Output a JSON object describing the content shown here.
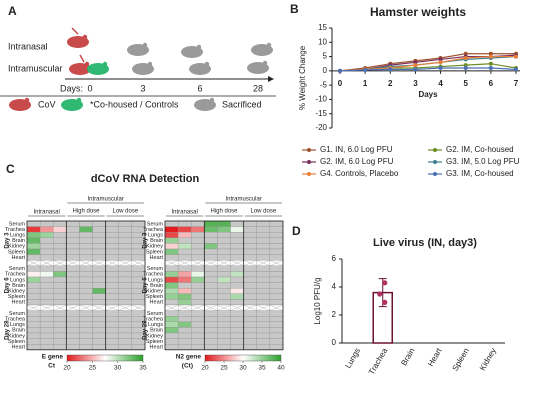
{
  "panel_labels": [
    "A",
    "B",
    "C",
    "D"
  ],
  "diagram": {
    "routes": [
      "Intranasal",
      "Intramuscular"
    ],
    "days_label": "Days:",
    "days": [
      0,
      3,
      6,
      28
    ],
    "legend": [
      "CoV",
      "*Co-housed / Controls",
      "Sacrificed"
    ]
  },
  "chart_data": [
    {
      "type": "line",
      "title": "Hamster weights",
      "x_label": "Days",
      "y_label": "% Weight Change",
      "x": [
        0,
        1,
        2,
        3,
        4,
        5,
        6,
        7
      ],
      "xlim": [
        0,
        7
      ],
      "xticks": [
        0,
        1,
        2,
        3,
        4,
        5,
        6,
        7
      ],
      "ylim": [
        -20,
        15
      ],
      "yticks": [
        -20,
        -15,
        -10,
        -5,
        0,
        5,
        10,
        15
      ],
      "series": [
        {
          "name": "G1. IN, 6.0 Log PFU",
          "color": "#a0522d",
          "values": [
            0,
            1,
            2.5,
            3.5,
            4.5,
            6,
            6,
            6
          ]
        },
        {
          "name": "G2. IM, Co-housed",
          "color": "#6b8e23",
          "values": [
            0,
            0.5,
            1,
            1,
            1.5,
            2,
            2.5,
            1
          ]
        },
        {
          "name": "G2. IM, 6.0 Log PFU",
          "color": "#7b2d5b",
          "values": [
            0,
            0.5,
            2,
            3,
            4,
            5,
            5,
            5.5
          ]
        },
        {
          "name": "G3. IM, 5.0 Log PFU",
          "color": "#3f7f8f",
          "values": [
            0,
            0.5,
            1.5,
            2,
            3,
            4,
            4.5,
            5
          ]
        },
        {
          "name": "G4. Controls, Placebo",
          "color": "#e8803a",
          "values": [
            0,
            0.5,
            1,
            2,
            3,
            4.5,
            5,
            5
          ]
        },
        {
          "name": "G3. IM, Co-housed",
          "color": "#4a6fb5",
          "values": [
            0,
            0.3,
            0.5,
            0.5,
            1,
            1,
            1,
            0.5
          ]
        }
      ]
    },
    {
      "type": "heatmap",
      "title": "dCoV RNA Detection",
      "row_groups": [
        "Day 3",
        "Day 6",
        "Day 28"
      ],
      "rows": [
        "Serum",
        "Trachea",
        "Lungs",
        "Brain",
        "Kidney",
        "Spleen",
        "Heart"
      ],
      "column_headers": {
        "intranasal": "Intranasal",
        "intramuscular": "Intramuscular",
        "high": "High dose",
        "low": "Low dose"
      },
      "colors": [
        "#e31a1c",
        "#ffffff",
        "#2ca02c"
      ],
      "missing_color": "#c8c8c8",
      "panels": [
        {
          "colorbar_label": [
            "E gene",
            "Ct"
          ],
          "clim": [
            20,
            35
          ],
          "cticks": [
            20,
            25,
            30,
            35
          ],
          "values": [
            [
              null,
              null,
              null,
              null,
              null,
              null,
              null,
              null,
              null
            ],
            [
              21,
              24,
              26,
              null,
              33,
              null,
              null,
              null,
              null
            ],
            [
              32,
              31,
              null,
              null,
              null,
              null,
              null,
              null,
              null
            ],
            [
              33,
              null,
              null,
              null,
              null,
              null,
              null,
              null,
              null
            ],
            [
              31,
              null,
              null,
              null,
              null,
              null,
              null,
              null,
              null
            ],
            [
              33,
              null,
              null,
              null,
              null,
              null,
              null,
              null,
              null
            ],
            [
              null,
              null,
              null,
              null,
              null,
              null,
              null,
              null,
              null
            ],
            [
              null,
              null,
              null,
              null,
              null,
              null,
              null,
              null,
              null
            ],
            [
              27,
              28,
              32,
              null,
              null,
              null,
              null,
              null,
              null
            ],
            [
              31,
              null,
              null,
              null,
              null,
              null,
              null,
              null,
              null
            ],
            [
              null,
              null,
              null,
              null,
              null,
              null,
              null,
              null,
              null
            ],
            [
              null,
              null,
              null,
              null,
              null,
              33,
              null,
              null,
              null
            ],
            [
              null,
              null,
              null,
              null,
              null,
              null,
              null,
              null,
              null
            ],
            [
              null,
              null,
              null,
              null,
              null,
              null,
              null,
              null,
              null
            ],
            [
              null,
              null,
              null,
              null,
              null,
              null,
              null,
              null,
              null
            ],
            [
              null,
              null,
              null,
              null,
              null,
              null,
              null,
              null,
              null
            ],
            [
              null,
              null,
              null,
              null,
              null,
              null,
              null,
              null,
              null
            ],
            [
              null,
              null,
              null,
              null,
              null,
              null,
              null,
              null,
              null
            ],
            [
              null,
              null,
              null,
              null,
              null,
              null,
              null,
              null,
              null
            ],
            [
              null,
              null,
              null,
              null,
              null,
              null,
              null,
              null,
              null
            ],
            [
              null,
              null,
              null,
              null,
              null,
              null,
              null,
              null,
              null
            ]
          ]
        },
        {
          "colorbar_label": [
            "N2 gene",
            "(Ct)"
          ],
          "clim": [
            20,
            40
          ],
          "cticks": [
            20,
            25,
            30,
            35,
            40
          ],
          "values": [
            [
              null,
              null,
              null,
              38,
              38,
              null,
              null,
              null,
              null
            ],
            [
              20,
              22,
              24,
              37,
              36,
              31,
              null,
              null,
              null
            ],
            [
              22,
              27,
              null,
              null,
              null,
              null,
              null,
              null,
              null
            ],
            [
              35,
              null,
              null,
              null,
              null,
              null,
              null,
              null,
              null
            ],
            [
              28,
              33,
              null,
              36,
              null,
              null,
              null,
              null,
              null
            ],
            [
              36,
              null,
              null,
              null,
              null,
              null,
              null,
              null,
              null
            ],
            [
              null,
              null,
              null,
              null,
              null,
              null,
              null,
              null,
              null
            ],
            [
              null,
              null,
              null,
              null,
              null,
              null,
              null,
              null,
              null
            ],
            [
              35,
              26,
              31,
              null,
              null,
              33,
              null,
              null,
              null
            ],
            [
              22,
              24,
              35,
              null,
              33,
              null,
              null,
              null,
              null
            ],
            [
              36,
              null,
              null,
              null,
              null,
              null,
              null,
              null,
              null
            ],
            [
              34,
              27,
              null,
              null,
              null,
              29,
              null,
              null,
              null
            ],
            [
              35,
              36,
              null,
              null,
              null,
              34,
              null,
              null,
              null
            ],
            [
              null,
              35,
              null,
              null,
              null,
              null,
              null,
              null,
              null
            ],
            [
              null,
              null,
              null,
              null,
              null,
              null,
              null,
              null,
              null
            ],
            [
              35,
              null,
              null,
              null,
              null,
              null,
              null,
              null,
              null
            ],
            [
              34,
              36,
              null,
              null,
              null,
              null,
              null,
              null,
              null
            ],
            [
              36,
              null,
              null,
              null,
              null,
              null,
              null,
              null,
              null
            ],
            [
              null,
              null,
              null,
              null,
              null,
              null,
              null,
              null,
              null
            ],
            [
              null,
              null,
              null,
              null,
              null,
              null,
              null,
              null,
              null
            ],
            [
              null,
              null,
              null,
              null,
              null,
              null,
              null,
              null,
              null
            ]
          ]
        }
      ]
    },
    {
      "type": "bar",
      "title": "Live virus (IN, day3)",
      "y_label": "Log10 PFU/g",
      "categories": [
        "Lungs",
        "Trachea",
        "Brain",
        "Heart",
        "Spleen",
        "Kidney"
      ],
      "values": [
        null,
        3.6,
        null,
        null,
        null,
        null
      ],
      "errors": [
        null,
        1.0,
        null,
        null,
        null,
        null
      ],
      "points": [
        [],
        [
          4.3,
          3.5,
          2.9
        ],
        [],
        [],
        [],
        []
      ],
      "color": "#6b1030",
      "point_color": "#b03060",
      "ylim": [
        0,
        6
      ],
      "yticks": [
        0,
        2,
        4,
        6
      ]
    }
  ]
}
